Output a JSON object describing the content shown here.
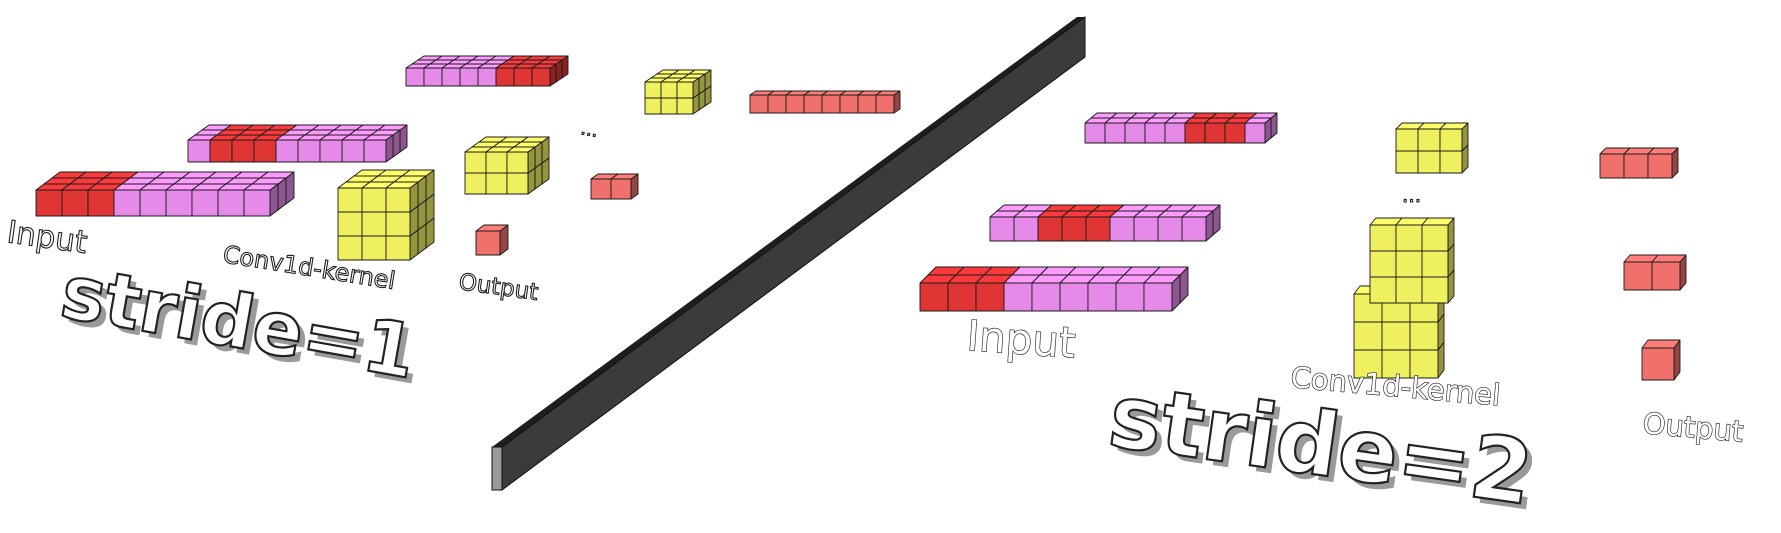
{
  "colors": {
    "input": "#e58ae8",
    "active": "#e03535",
    "kernel": "#eef060",
    "output": "#f0706c",
    "divider": "#3a3a3a"
  },
  "left_panel": {
    "input_label": "Input",
    "kernel_label": "Conv1d-kernel",
    "output_label": "Output",
    "stride_label": "stride=1",
    "ellipsis": "..."
  },
  "right_panel": {
    "input_label": "Input",
    "kernel_label": "Conv1d-kernel",
    "output_label": "Output",
    "stride_label": "stride=2",
    "ellipsis": "..."
  }
}
